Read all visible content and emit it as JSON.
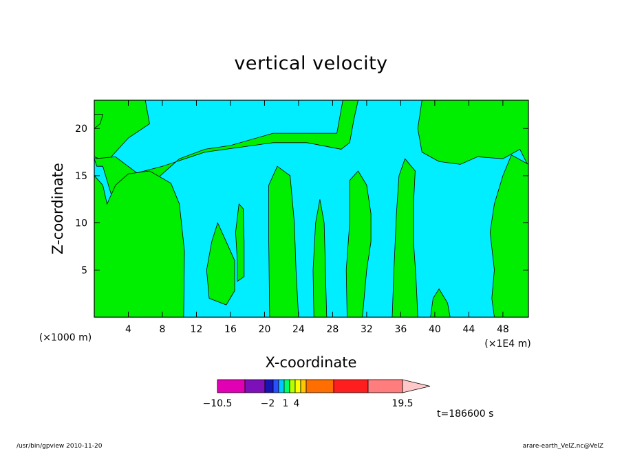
{
  "chart_data": {
    "type": "heatmap",
    "title": "vertical velocity",
    "xlabel": "X-coordinate",
    "ylabel": "Z-coordinate",
    "x_unit_label": "(×1000 m)",
    "x_scale_label": "(×1E4 m)",
    "xlim": [
      0,
      51
    ],
    "ylim": [
      0,
      23
    ],
    "x_ticks": [
      "4",
      "8",
      "12",
      "16",
      "20",
      "24",
      "28",
      "32",
      "36",
      "40",
      "44",
      "48"
    ],
    "y_ticks": [
      "5",
      "10",
      "15",
      "20"
    ],
    "x_tick_values": [
      4,
      8,
      12,
      16,
      20,
      24,
      28,
      32,
      36,
      40,
      44,
      48
    ],
    "y_tick_values": [
      5,
      10,
      15,
      20
    ],
    "time_label": "t=186600 s",
    "colorbar": {
      "tick_labels": [
        "−10.5",
        "−2",
        "1",
        "4",
        "19.5"
      ],
      "colors": [
        "#e100b4",
        "#7d10b9",
        "#1814b4",
        "#2850ff",
        "#00c8ff",
        "#00ff6e",
        "#b4ff00",
        "#ffff00",
        "#ffc800",
        "#ff6e00",
        "#ff1e1e",
        "#ff7d7d",
        "#ffc8c8"
      ]
    },
    "field_colors": {
      "negative": "#00eeff",
      "positive": "#00ee00"
    },
    "positive_regions": [
      {
        "name": "upper-left-band",
        "points": [
          [
            0,
            23
          ],
          [
            6,
            23
          ],
          [
            6.5,
            20.5
          ],
          [
            4,
            19
          ],
          [
            2,
            17
          ],
          [
            1.5,
            16.5
          ],
          [
            0,
            17
          ]
        ]
      },
      {
        "name": "left-upper-patch",
        "points": [
          [
            0,
            21.5
          ],
          [
            1,
            21.5
          ],
          [
            0.7,
            20.5
          ],
          [
            0,
            20
          ]
        ]
      },
      {
        "name": "central-upper-band",
        "points": [
          [
            0,
            16.8
          ],
          [
            2.5,
            17
          ],
          [
            5,
            15.3
          ],
          [
            8,
            16
          ],
          [
            13,
            17.5
          ],
          [
            21,
            18.5
          ],
          [
            25,
            18.5
          ],
          [
            29,
            17.8
          ],
          [
            30,
            18.5
          ],
          [
            30.5,
            21
          ],
          [
            31,
            23
          ],
          [
            29.2,
            23
          ],
          [
            28.5,
            19.5
          ],
          [
            25,
            19.5
          ],
          [
            21,
            19.5
          ],
          [
            16,
            18.2
          ],
          [
            13,
            17.8
          ],
          [
            10,
            16.8
          ],
          [
            8,
            15.2
          ],
          [
            6,
            13.5
          ],
          [
            4,
            11
          ],
          [
            3,
            11
          ],
          [
            2,
            13
          ],
          [
            1,
            16
          ],
          [
            0.3,
            16
          ]
        ]
      },
      {
        "name": "left-column",
        "points": [
          [
            0,
            0
          ],
          [
            10.5,
            0
          ],
          [
            10.6,
            7
          ],
          [
            10,
            12
          ],
          [
            9,
            14.2
          ],
          [
            6.5,
            15.5
          ],
          [
            4,
            15.2
          ],
          [
            2.5,
            14
          ],
          [
            1.5,
            12
          ],
          [
            1,
            14
          ],
          [
            0,
            15
          ]
        ]
      },
      {
        "name": "upper-right-band",
        "points": [
          [
            38.5,
            23
          ],
          [
            51,
            23
          ],
          [
            51,
            16
          ],
          [
            50,
            17.8
          ],
          [
            48,
            16.8
          ],
          [
            45,
            17
          ],
          [
            43,
            16.2
          ],
          [
            40.5,
            16.5
          ],
          [
            38.5,
            17.5
          ],
          [
            38,
            20
          ]
        ]
      },
      {
        "name": "right-column",
        "points": [
          [
            47,
            0
          ],
          [
            51,
            0
          ],
          [
            51,
            16.2
          ],
          [
            49,
            17.2
          ],
          [
            48,
            15
          ],
          [
            47,
            12
          ],
          [
            46.5,
            9
          ],
          [
            47,
            5
          ],
          [
            46.7,
            2
          ]
        ]
      },
      {
        "name": "column-21",
        "points": [
          [
            20.6,
            0
          ],
          [
            24,
            0
          ],
          [
            23.7,
            5
          ],
          [
            23.5,
            10
          ],
          [
            23,
            15
          ],
          [
            21.5,
            16
          ],
          [
            20.5,
            14
          ],
          [
            20.5,
            8
          ]
        ]
      },
      {
        "name": "column-26",
        "points": [
          [
            25.8,
            0
          ],
          [
            27.3,
            0
          ],
          [
            27,
            10
          ],
          [
            26.5,
            12.5
          ],
          [
            26,
            10
          ],
          [
            25.7,
            5
          ]
        ]
      },
      {
        "name": "column-30",
        "points": [
          [
            29.7,
            0
          ],
          [
            31.5,
            0
          ],
          [
            32,
            5
          ],
          [
            32.5,
            8
          ],
          [
            32.5,
            11
          ],
          [
            32,
            14
          ],
          [
            31,
            15.5
          ],
          [
            30,
            14.5
          ],
          [
            30,
            10
          ],
          [
            29.6,
            5
          ]
        ]
      },
      {
        "name": "column-35",
        "points": [
          [
            35,
            0
          ],
          [
            38,
            0
          ],
          [
            37.8,
            4
          ],
          [
            37.5,
            8
          ],
          [
            37.5,
            12
          ],
          [
            37.7,
            15.5
          ],
          [
            36.5,
            16.8
          ],
          [
            35.8,
            15
          ],
          [
            35.5,
            11
          ],
          [
            35.2,
            5
          ]
        ]
      },
      {
        "name": "mid-patch-15",
        "points": [
          [
            13.5,
            2
          ],
          [
            15.5,
            1.3
          ],
          [
            16.5,
            2.8
          ],
          [
            16.5,
            6
          ],
          [
            15.5,
            8
          ],
          [
            14.5,
            10
          ],
          [
            13.8,
            8
          ],
          [
            13.2,
            5
          ]
        ]
      },
      {
        "name": "mid-patch-17",
        "points": [
          [
            16.8,
            3.8
          ],
          [
            17.6,
            4.3
          ],
          [
            17.6,
            8
          ],
          [
            17.5,
            11.5
          ],
          [
            17,
            12
          ],
          [
            16.6,
            9
          ],
          [
            16.8,
            6
          ]
        ]
      },
      {
        "name": "column-40",
        "points": [
          [
            39.5,
            0
          ],
          [
            41.8,
            0
          ],
          [
            41.5,
            1.5
          ],
          [
            40.5,
            3
          ],
          [
            39.8,
            2
          ]
        ]
      }
    ]
  },
  "footer": {
    "left": "/usr/bin/gpview  2010-11-20",
    "right": "arare-earth_VelZ.nc@VelZ"
  }
}
